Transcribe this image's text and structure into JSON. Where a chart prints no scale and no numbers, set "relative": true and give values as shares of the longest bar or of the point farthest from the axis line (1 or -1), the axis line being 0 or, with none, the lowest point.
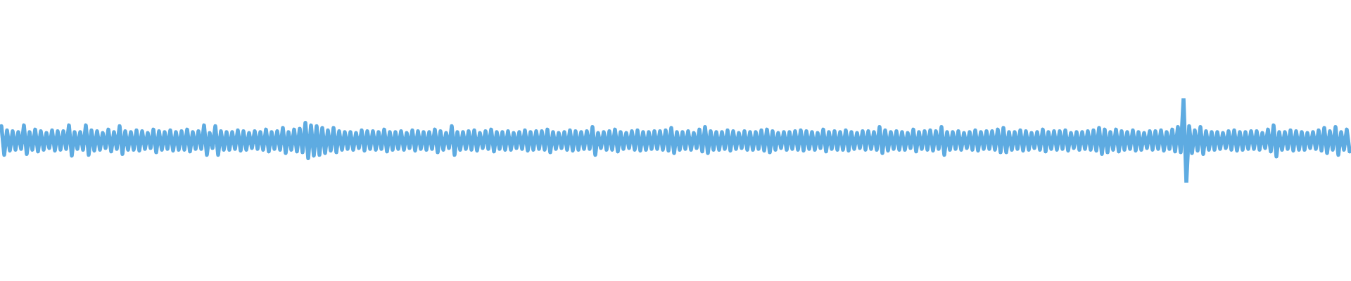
{
  "chart_data": {
    "type": "line",
    "relative": true,
    "color": "#5eabe1",
    "categories": [
      null,
      null,
      null,
      null,
      null,
      null,
      null,
      null,
      null,
      null,
      null,
      null,
      null,
      null,
      null,
      null,
      null,
      null,
      null,
      null,
      null,
      null,
      null,
      null,
      null,
      null,
      null,
      null,
      null,
      null,
      null,
      null,
      null,
      null,
      null,
      null,
      null,
      null,
      null,
      null,
      null,
      null,
      null,
      null,
      null,
      null,
      null,
      null,
      null,
      null,
      null,
      null,
      null,
      null,
      null,
      null,
      null,
      null,
      null,
      null,
      null,
      null,
      null,
      null,
      null,
      null,
      null,
      null,
      null,
      null,
      null,
      null,
      null,
      null,
      null,
      null,
      null,
      null,
      null,
      null,
      null,
      null,
      null,
      null,
      null,
      null,
      null,
      null,
      null,
      null,
      null,
      null,
      null,
      null,
      null,
      null,
      null,
      null,
      null,
      null,
      null,
      null,
      null,
      null,
      null,
      null,
      null,
      null,
      null,
      null,
      null,
      null,
      null,
      null,
      null,
      null,
      null,
      null,
      null,
      null,
      null,
      null,
      null,
      null,
      null,
      null,
      null,
      null,
      null,
      null,
      null,
      null,
      null,
      null,
      null,
      null,
      null,
      null,
      null,
      null,
      null,
      null,
      null,
      null,
      null,
      null,
      null,
      null,
      null,
      null,
      null,
      null,
      null,
      null,
      null,
      null,
      null,
      null,
      null,
      null,
      null,
      null,
      null,
      null,
      null,
      null,
      null,
      null,
      null,
      null,
      null,
      null,
      null,
      null,
      null,
      null,
      null,
      null,
      null,
      null,
      null,
      null,
      null,
      null,
      null,
      null,
      null,
      null,
      null,
      null,
      null,
      null,
      null,
      null,
      null,
      null,
      null,
      null,
      null,
      null,
      null,
      null,
      null,
      null,
      null,
      null,
      null,
      null,
      null,
      null,
      null,
      null,
      null,
      null,
      null,
      null,
      null,
      null,
      null,
      null,
      null,
      null,
      null,
      null,
      null,
      null,
      null,
      null,
      null,
      null,
      null,
      null,
      null,
      null,
      null,
      null,
      null,
      null,
      null,
      null,
      null,
      null,
      null,
      null,
      null,
      null,
      null,
      null,
      null,
      null,
      null,
      null,
      null,
      null,
      null,
      null,
      null,
      null,
      null,
      null,
      null,
      null,
      null,
      null,
      null,
      null,
      null,
      null,
      null,
      null,
      null,
      null,
      null,
      null,
      null,
      null,
      null,
      null,
      null,
      null,
      null,
      null,
      null,
      null,
      null,
      null,
      null,
      null,
      null,
      null,
      null,
      null,
      null,
      null,
      null,
      null,
      null,
      null,
      null,
      null,
      null,
      null,
      null,
      null,
      null,
      null,
      null,
      null,
      null,
      null,
      null,
      null,
      null,
      null,
      null,
      null,
      null,
      null,
      null,
      null,
      null,
      null,
      null,
      null,
      null,
      null,
      null,
      null,
      null,
      null,
      null,
      null,
      null,
      null,
      null,
      null,
      null,
      null,
      null,
      null,
      null,
      null,
      null,
      null,
      null,
      null,
      null,
      null,
      null,
      null,
      null,
      null,
      null,
      null,
      null,
      null,
      null,
      null,
      null,
      null,
      null,
      null,
      null,
      null,
      null,
      null,
      null,
      null,
      null,
      null,
      null,
      null,
      null,
      null,
      null,
      null,
      null,
      null,
      null,
      null,
      null,
      null,
      null,
      null,
      null,
      null,
      null,
      null,
      null,
      null,
      null,
      null,
      null,
      null,
      null,
      null,
      null,
      null,
      null,
      null,
      null,
      null,
      null,
      null,
      null,
      null,
      null,
      null,
      null,
      null,
      null,
      null,
      null,
      null,
      null,
      null,
      null,
      null,
      null,
      null,
      null,
      null,
      null,
      null,
      null,
      null,
      null,
      null,
      null,
      null,
      null,
      null,
      null,
      null,
      null,
      null,
      null,
      null,
      null,
      null,
      null,
      null,
      null,
      null,
      null,
      null,
      null,
      null,
      null,
      null,
      null,
      null,
      null,
      null,
      null,
      null,
      null,
      null,
      null,
      null,
      null,
      null,
      null,
      null,
      null,
      null,
      null,
      null,
      null,
      null,
      null,
      null,
      null,
      null,
      null,
      null,
      null,
      null,
      null,
      null
    ],
    "values": [
      0.67,
      0.33,
      0.62,
      0.38,
      0.61,
      0.39,
      0.6,
      0.4,
      0.68,
      0.34,
      0.6,
      0.39,
      0.63,
      0.37,
      0.61,
      0.39,
      0.59,
      0.41,
      0.62,
      0.38,
      0.61,
      0.39,
      0.61,
      0.4,
      0.68,
      0.32,
      0.6,
      0.4,
      0.6,
      0.39,
      0.68,
      0.33,
      0.62,
      0.38,
      0.61,
      0.39,
      0.59,
      0.41,
      0.63,
      0.37,
      0.6,
      0.4,
      0.67,
      0.34,
      0.61,
      0.39,
      0.6,
      0.39,
      0.62,
      0.38,
      0.61,
      0.4,
      0.59,
      0.41,
      0.63,
      0.36,
      0.61,
      0.39,
      0.6,
      0.4,
      0.62,
      0.38,
      0.6,
      0.39,
      0.61,
      0.39,
      0.63,
      0.37,
      0.6,
      0.4,
      0.61,
      0.4,
      0.68,
      0.33,
      0.59,
      0.41,
      0.67,
      0.33,
      0.61,
      0.39,
      0.6,
      0.39,
      0.6,
      0.4,
      0.62,
      0.38,
      0.61,
      0.39,
      0.59,
      0.41,
      0.61,
      0.4,
      0.6,
      0.39,
      0.63,
      0.37,
      0.6,
      0.4,
      0.61,
      0.39,
      0.65,
      0.35,
      0.6,
      0.39,
      0.63,
      0.37,
      0.64,
      0.36,
      0.71,
      0.29,
      0.68,
      0.32,
      0.67,
      0.33,
      0.65,
      0.35,
      0.62,
      0.38,
      0.65,
      0.36,
      0.61,
      0.39,
      0.6,
      0.4,
      0.6,
      0.39,
      0.59,
      0.41,
      0.62,
      0.38,
      0.61,
      0.4,
      0.61,
      0.39,
      0.6,
      0.4,
      0.63,
      0.37,
      0.6,
      0.39,
      0.6,
      0.4,
      0.61,
      0.39,
      0.59,
      0.41,
      0.62,
      0.38,
      0.61,
      0.4,
      0.6,
      0.39,
      0.6,
      0.4,
      0.63,
      0.36,
      0.61,
      0.39,
      0.59,
      0.41,
      0.67,
      0.33,
      0.6,
      0.39,
      0.6,
      0.4,
      0.61,
      0.39,
      0.62,
      0.38,
      0.59,
      0.41,
      0.61,
      0.4,
      0.63,
      0.37,
      0.6,
      0.4,
      0.6,
      0.39,
      0.61,
      0.39,
      0.59,
      0.41,
      0.6,
      0.4,
      0.62,
      0.38,
      0.6,
      0.39,
      0.61,
      0.4,
      0.61,
      0.39,
      0.63,
      0.36,
      0.6,
      0.4,
      0.59,
      0.41,
      0.6,
      0.39,
      0.62,
      0.38,
      0.61,
      0.39,
      0.6,
      0.4,
      0.61,
      0.4,
      0.66,
      0.33,
      0.59,
      0.41,
      0.6,
      0.39,
      0.61,
      0.39,
      0.63,
      0.37,
      0.6,
      0.4,
      0.59,
      0.41,
      0.61,
      0.39,
      0.62,
      0.38,
      0.6,
      0.39,
      0.6,
      0.4,
      0.61,
      0.4,
      0.61,
      0.39,
      0.62,
      0.38,
      0.65,
      0.35,
      0.6,
      0.39,
      0.6,
      0.4,
      0.61,
      0.39,
      0.59,
      0.41,
      0.63,
      0.37,
      0.66,
      0.35,
      0.61,
      0.39,
      0.6,
      0.39,
      0.6,
      0.4,
      0.62,
      0.38,
      0.61,
      0.4,
      0.59,
      0.41,
      0.61,
      0.39,
      0.6,
      0.39,
      0.6,
      0.4,
      0.62,
      0.38,
      0.63,
      0.36,
      0.61,
      0.39,
      0.59,
      0.41,
      0.6,
      0.39,
      0.6,
      0.4,
      0.61,
      0.39,
      0.62,
      0.38,
      0.61,
      0.4,
      0.6,
      0.39,
      0.59,
      0.41,
      0.63,
      0.37,
      0.6,
      0.4,
      0.61,
      0.39,
      0.6,
      0.39,
      0.62,
      0.38,
      0.6,
      0.4,
      0.59,
      0.41,
      0.61,
      0.39,
      0.61,
      0.4,
      0.6,
      0.39,
      0.66,
      0.35,
      0.62,
      0.38,
      0.6,
      0.4,
      0.61,
      0.39,
      0.6,
      0.39,
      0.59,
      0.41,
      0.63,
      0.37,
      0.6,
      0.4,
      0.61,
      0.39,
      0.62,
      0.38,
      0.61,
      0.4,
      0.66,
      0.33,
      0.6,
      0.39,
      0.6,
      0.4,
      0.61,
      0.39,
      0.59,
      0.41,
      0.6,
      0.39,
      0.62,
      0.38,
      0.6,
      0.4,
      0.61,
      0.4,
      0.61,
      0.39,
      0.63,
      0.36,
      0.65,
      0.36,
      0.6,
      0.39,
      0.6,
      0.4,
      0.62,
      0.38,
      0.61,
      0.39,
      0.59,
      0.41,
      0.6,
      0.39,
      0.63,
      0.37,
      0.6,
      0.4,
      0.61,
      0.39,
      0.61,
      0.4,
      0.62,
      0.38,
      0.59,
      0.41,
      0.6,
      0.39,
      0.6,
      0.4,
      0.61,
      0.39,
      0.62,
      0.38,
      0.65,
      0.34,
      0.63,
      0.36,
      0.6,
      0.39,
      0.63,
      0.37,
      0.61,
      0.39,
      0.6,
      0.4,
      0.62,
      0.38,
      0.6,
      0.39,
      0.59,
      0.41,
      0.61,
      0.39,
      0.61,
      0.4,
      0.62,
      0.38,
      0.6,
      0.4,
      0.63,
      0.37,
      0.66,
      0.36,
      1,
      0,
      0.67,
      0.35,
      0.62,
      0.38,
      0.66,
      0.34,
      0.61,
      0.39,
      0.6,
      0.39,
      0.6,
      0.4,
      0.59,
      0.41,
      0.61,
      0.39,
      0.62,
      0.38,
      0.6,
      0.39,
      0.6,
      0.4,
      0.61,
      0.4,
      0.61,
      0.39,
      0.59,
      0.41,
      0.63,
      0.37,
      0.68,
      0.31,
      0.6,
      0.39,
      0.6,
      0.4,
      0.62,
      0.38,
      0.61,
      0.39,
      0.6,
      0.39,
      0.59,
      0.41,
      0.6,
      0.4,
      0.62,
      0.38,
      0.65,
      0.35,
      0.61,
      0.39,
      0.66,
      0.33,
      0.6,
      0.39,
      0.63,
      0.37
    ]
  }
}
